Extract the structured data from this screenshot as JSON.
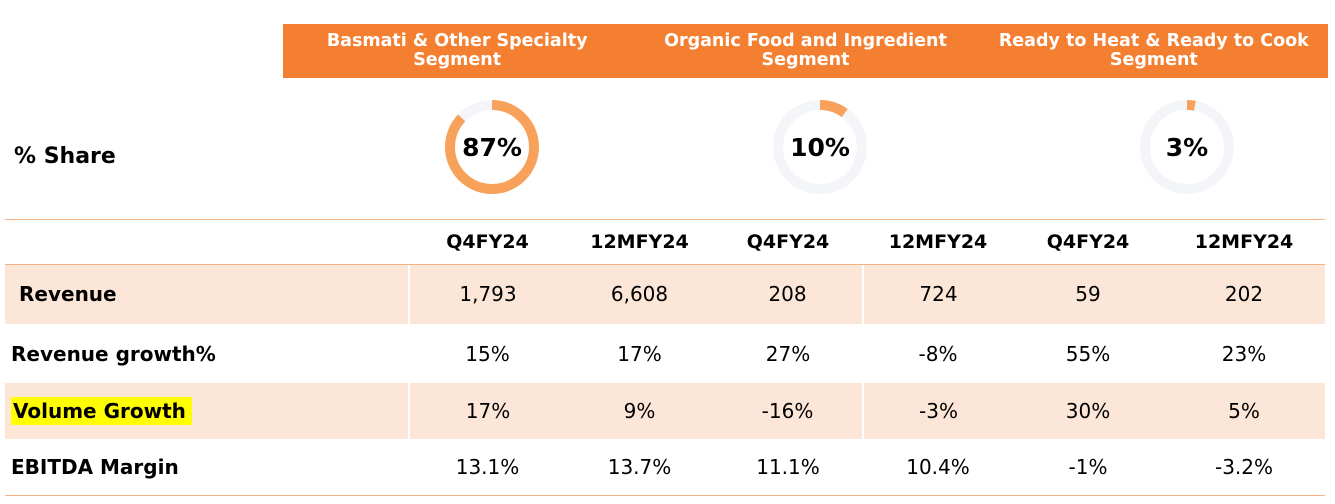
{
  "segments": [
    {
      "title": "Basmati & Other Specialty Segment",
      "share": "87%",
      "share_value": 0.87,
      "color": "#f7a15a",
      "track": "#f3f5f9"
    },
    {
      "title": "Organic Food and Ingredient Segment",
      "share": "10%",
      "share_value": 0.1,
      "color": "#f7a15a",
      "track": "#f3f5f9"
    },
    {
      "title": "Ready to Heat & Ready to Cook Segment",
      "share": "3%",
      "share_value": 0.03,
      "color": "#f7a15a",
      "track": "#f3f5f9"
    }
  ],
  "share_label": "% Share",
  "periods": [
    "Q4FY24",
    "12MFY24",
    "Q4FY24",
    "12MFY24",
    "Q4FY24",
    "12MFY24"
  ],
  "rows": [
    {
      "label": "Revenue",
      "values": [
        "1,793",
        "6,608",
        "208",
        "724",
        "59",
        "202"
      ]
    },
    {
      "label": "Revenue growth%",
      "values": [
        "15%",
        "17%",
        "27%",
        "-8%",
        "55%",
        "23%"
      ]
    },
    {
      "label": "Volume Growth",
      "values": [
        "17%",
        "9%",
        "-16%",
        "-3%",
        "30%",
        "5%"
      ]
    },
    {
      "label": "EBITDA Margin",
      "values": [
        "13.1%",
        "13.7%",
        "11.1%",
        "10.4%",
        "-1%",
        "-3.2%"
      ]
    }
  ],
  "colors": {
    "header_bar": "#f47f31",
    "row_shade": "#fce6d7",
    "divider": "#f4b183",
    "highlight": "#ffff00"
  }
}
